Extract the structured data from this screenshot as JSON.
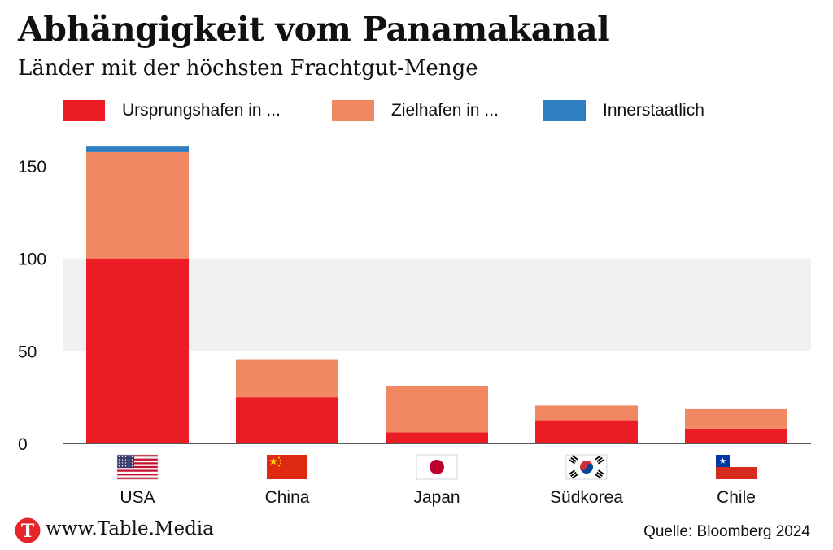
{
  "title": "Abhängigkeit vom Panamakanal",
  "subtitle": "Länder mit der höchsten Frachtgut-Menge",
  "legend": [
    {
      "label": "Ursprungshafen in ...",
      "color": "#ec1c24"
    },
    {
      "label": "Zielhafen in ...",
      "color": "#f28862"
    },
    {
      "label": "Innerstaatlich",
      "color": "#2e7ec1"
    }
  ],
  "chart_data": {
    "type": "bar",
    "stacked": true,
    "categories": [
      "USA",
      "China",
      "Japan",
      "Südkorea",
      "Chile"
    ],
    "flag_icons": [
      "usa-flag-icon",
      "china-flag-icon",
      "japan-flag-icon",
      "south-korea-flag-icon",
      "chile-flag-icon"
    ],
    "series": [
      {
        "name": "Ursprungshafen in ...",
        "color": "#ec1c24",
        "values": [
          100,
          25,
          6,
          12.5,
          8
        ]
      },
      {
        "name": "Zielhafen in ...",
        "color": "#f28862",
        "values": [
          57.5,
          20.5,
          25,
          8,
          10.5
        ]
      },
      {
        "name": "Innerstaatlich",
        "color": "#2e7ec1",
        "values": [
          3,
          0,
          0,
          0,
          0
        ]
      }
    ],
    "ylim": [
      0,
      160
    ],
    "yticks": [
      0,
      50,
      100,
      150
    ],
    "grid_bands": true,
    "legend_position": "top-left"
  },
  "footer": {
    "site": "www.Table.Media",
    "logo_letter": "T",
    "source": "Quelle: Bloomberg 2024"
  }
}
